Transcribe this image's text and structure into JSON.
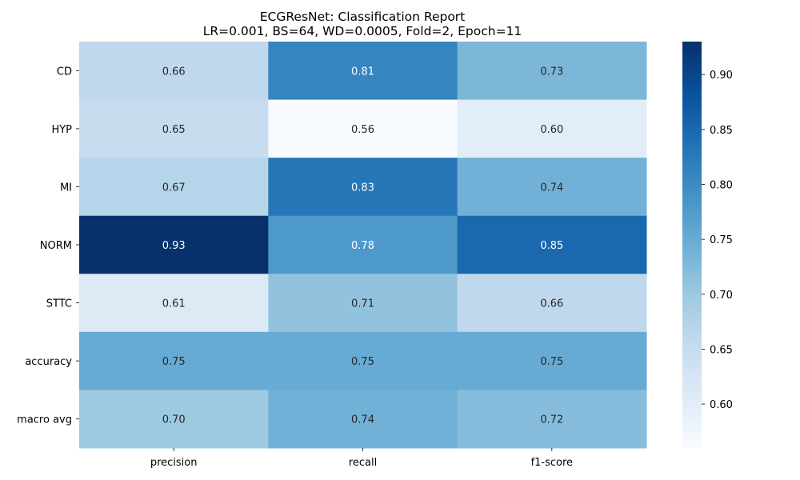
{
  "chart_data": {
    "type": "heatmap",
    "title": "ECGResNet: Classification Report",
    "subtitle": "LR=0.001, BS=64, WD=0.0005, Fold=2, Epoch=11",
    "x_categories": [
      "precision",
      "recall",
      "f1-score"
    ],
    "y_categories": [
      "CD",
      "HYP",
      "MI",
      "NORM",
      "STTC",
      "accuracy",
      "macro avg"
    ],
    "values": [
      [
        0.66,
        0.81,
        0.73
      ],
      [
        0.65,
        0.56,
        0.6
      ],
      [
        0.67,
        0.83,
        0.74
      ],
      [
        0.93,
        0.78,
        0.85
      ],
      [
        0.61,
        0.71,
        0.66
      ],
      [
        0.75,
        0.75,
        0.75
      ],
      [
        0.7,
        0.74,
        0.72
      ]
    ],
    "cell_labels": [
      [
        "0.66",
        "0.81",
        "0.73"
      ],
      [
        "0.65",
        "0.56",
        "0.60"
      ],
      [
        "0.67",
        "0.83",
        "0.74"
      ],
      [
        "0.93",
        "0.78",
        "0.85"
      ],
      [
        "0.61",
        "0.71",
        "0.66"
      ],
      [
        "0.75",
        "0.75",
        "0.75"
      ],
      [
        "0.70",
        "0.74",
        "0.72"
      ]
    ],
    "colormap": "Blues",
    "colorbar": {
      "range": [
        0.56,
        0.93
      ],
      "ticks": [
        0.6,
        0.65,
        0.7,
        0.75,
        0.8,
        0.85,
        0.9
      ],
      "tick_labels": [
        "0.60",
        "0.65",
        "0.70",
        "0.75",
        "0.80",
        "0.85",
        "0.90"
      ]
    },
    "grid": false,
    "legend": "colorbar-right"
  }
}
